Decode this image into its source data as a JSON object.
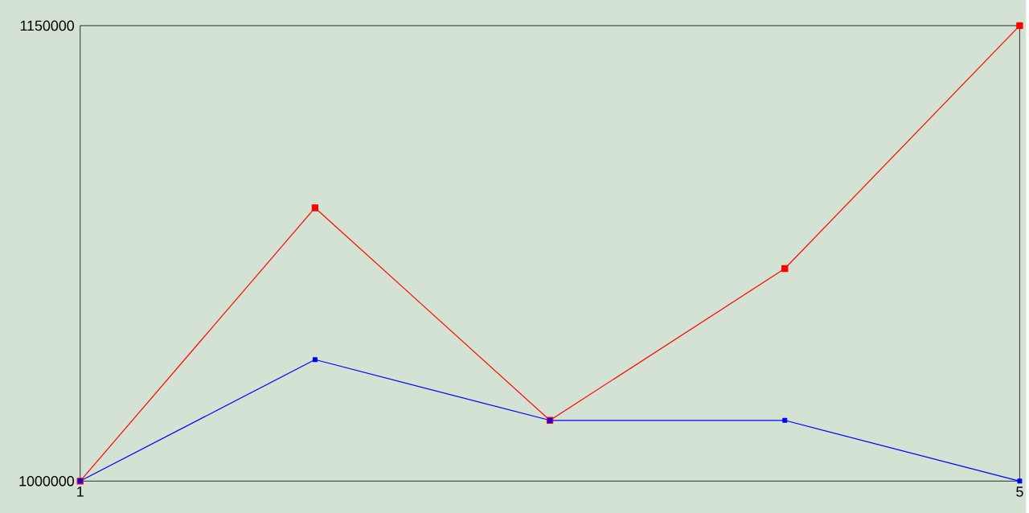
{
  "chart_data": {
    "type": "line",
    "x": [
      1,
      2,
      3,
      4,
      5
    ],
    "series": [
      {
        "color": "#ff0000",
        "values": [
          1000000,
          1090000,
          1020000,
          1070000,
          1150000
        ]
      },
      {
        "color": "#0000ff",
        "values": [
          1000000,
          1040000,
          1020000,
          1020000,
          1000000
        ]
      }
    ],
    "xlim": [
      1,
      5
    ],
    "ylim": [
      1000000,
      1150000
    ],
    "xticks": [
      1,
      5
    ],
    "yticks": [
      1000000,
      1150000
    ],
    "grid": false,
    "marker": "square",
    "line_style": "solid"
  }
}
